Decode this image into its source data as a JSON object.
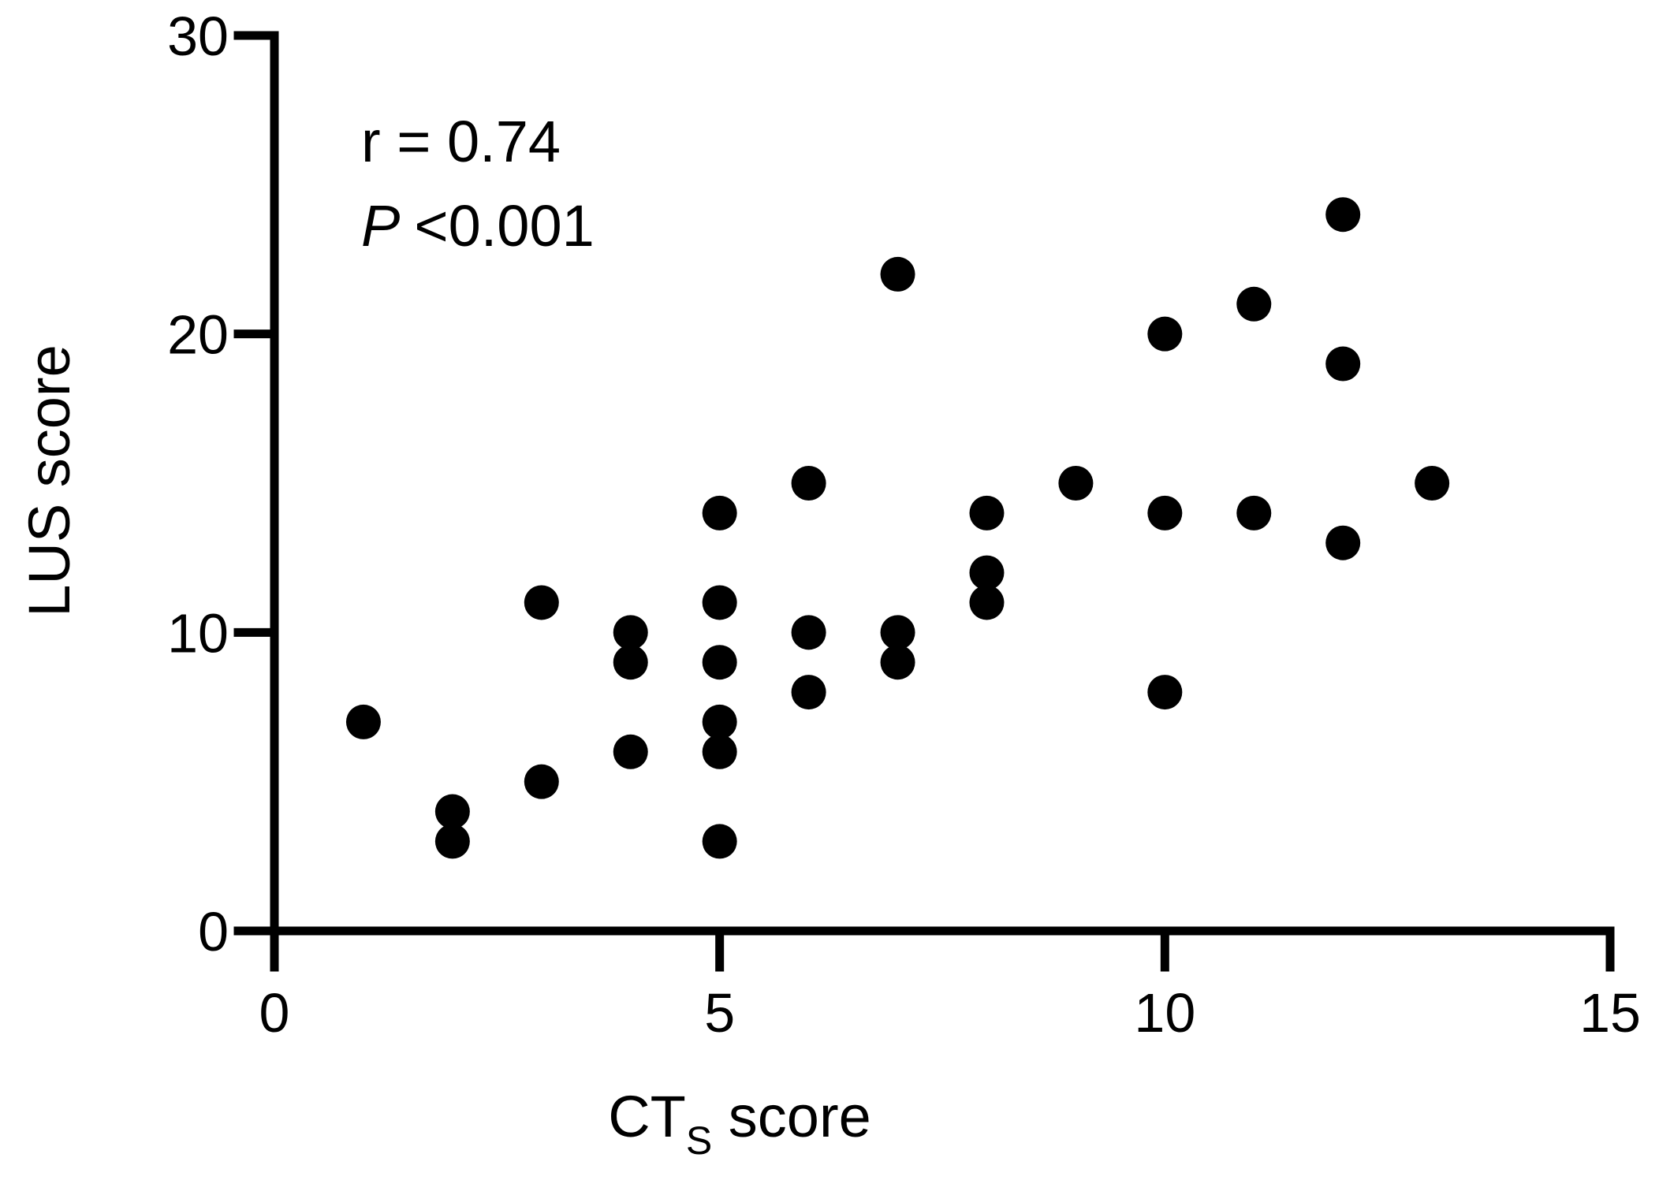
{
  "chart_data": {
    "type": "scatter",
    "title": "",
    "xlabel": "CT",
    "xlabel_sub": "S",
    "xlabel_suffix": " score",
    "ylabel": "LUS score",
    "xlim": [
      0,
      15
    ],
    "ylim": [
      0,
      30
    ],
    "xticks": [
      "0",
      "5",
      "10",
      "15"
    ],
    "yticks": [
      "0",
      "10",
      "20",
      "30"
    ],
    "grid": false,
    "legend": "none",
    "annotation": {
      "r_line": "r = 0.74",
      "p_symbol": "P",
      "p_value": "<0.001"
    },
    "marker_color": "#000000",
    "points": [
      {
        "x": 1,
        "y": 7
      },
      {
        "x": 2,
        "y": 4
      },
      {
        "x": 2,
        "y": 3
      },
      {
        "x": 3,
        "y": 11
      },
      {
        "x": 3,
        "y": 5
      },
      {
        "x": 4,
        "y": 10
      },
      {
        "x": 4,
        "y": 9
      },
      {
        "x": 4,
        "y": 6
      },
      {
        "x": 5,
        "y": 14
      },
      {
        "x": 5,
        "y": 11
      },
      {
        "x": 5,
        "y": 9
      },
      {
        "x": 5,
        "y": 7
      },
      {
        "x": 5,
        "y": 6
      },
      {
        "x": 5,
        "y": 3
      },
      {
        "x": 6,
        "y": 15
      },
      {
        "x": 6,
        "y": 10
      },
      {
        "x": 6,
        "y": 8
      },
      {
        "x": 7,
        "y": 22
      },
      {
        "x": 7,
        "y": 10
      },
      {
        "x": 7,
        "y": 9
      },
      {
        "x": 8,
        "y": 14
      },
      {
        "x": 8,
        "y": 12
      },
      {
        "x": 8,
        "y": 11
      },
      {
        "x": 9,
        "y": 15
      },
      {
        "x": 10,
        "y": 20
      },
      {
        "x": 10,
        "y": 14
      },
      {
        "x": 10,
        "y": 8
      },
      {
        "x": 11,
        "y": 21
      },
      {
        "x": 11,
        "y": 14
      },
      {
        "x": 12,
        "y": 24
      },
      {
        "x": 12,
        "y": 19
      },
      {
        "x": 12,
        "y": 13
      },
      {
        "x": 13,
        "y": 15
      }
    ]
  }
}
